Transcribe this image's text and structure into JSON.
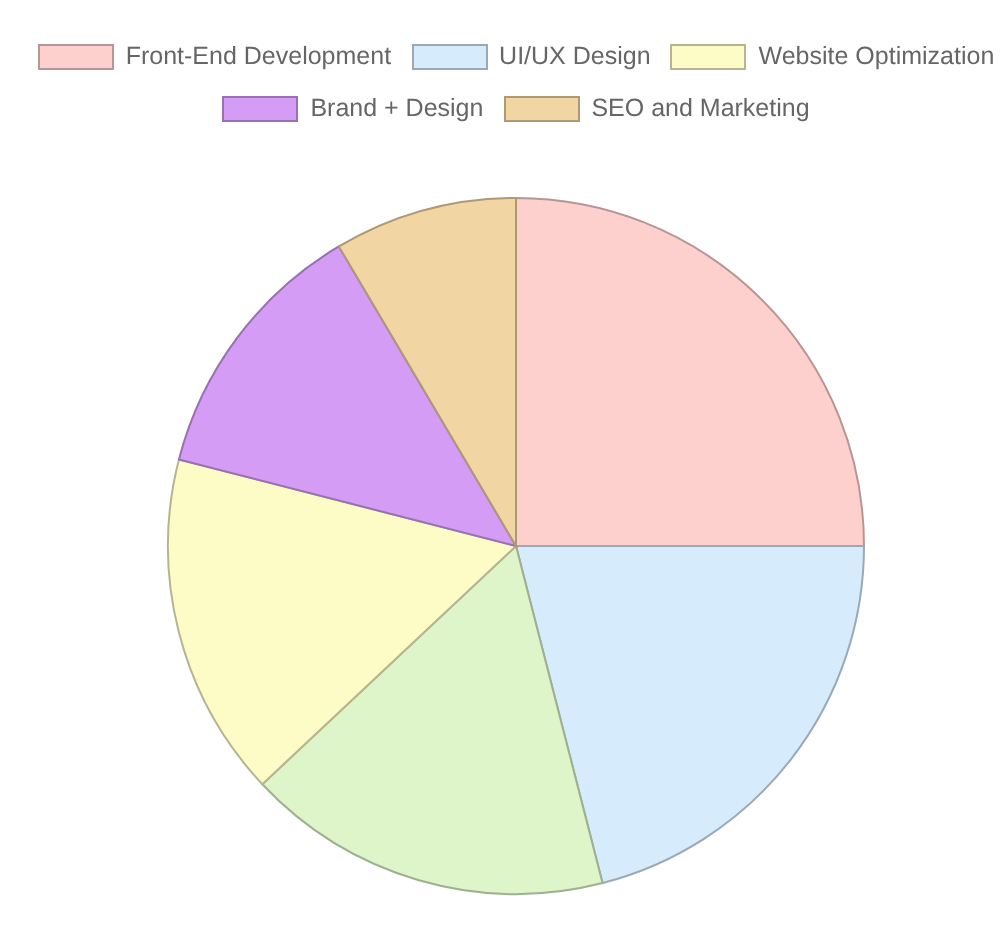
{
  "chart_data": {
    "type": "pie",
    "categories": [
      "Front-End Development",
      "UI/UX Design",
      null,
      "Website Optimization",
      "Brand + Design",
      "SEO and Marketing"
    ],
    "values": [
      25,
      21,
      17,
      16,
      12.5,
      8.5
    ],
    "colors": [
      "#fdd0cd",
      "#d6ebfb",
      "#ddf5c9",
      "#fdfbc6",
      "#d59cf6",
      "#f1d5a3"
    ],
    "legend": "top"
  }
}
